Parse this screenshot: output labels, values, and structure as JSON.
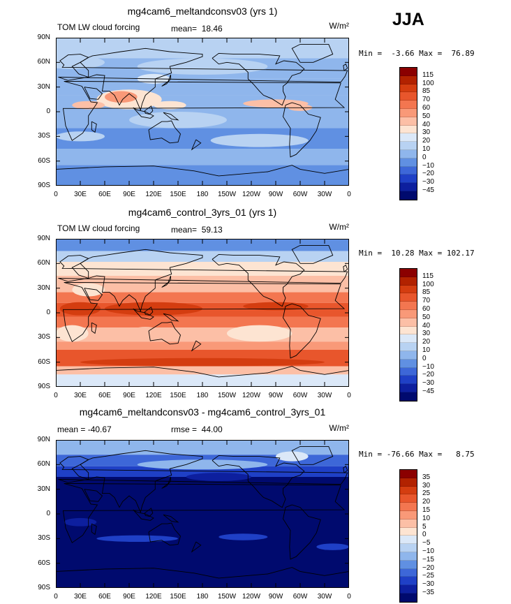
{
  "season": "JJA",
  "x_ticks": [
    "0",
    "30E",
    "60E",
    "90E",
    "120E",
    "150E",
    "180",
    "150W",
    "120W",
    "90W",
    "60W",
    "30W",
    "0"
  ],
  "y_ticks": [
    "90N",
    "60N",
    "30N",
    "0",
    "30S",
    "60S",
    "90S"
  ],
  "panels": [
    {
      "title": "mg4cam6_meltandconsv03 (yrs 1)",
      "left_label": "TOM LW cloud forcing",
      "stat1": "mean=  18.46",
      "stat2": "",
      "units": "W/m²",
      "minmax": "Min =  -3.66 Max =  76.89",
      "levels": [
        "115",
        "100",
        "85",
        "70",
        "60",
        "50",
        "40",
        "30",
        "20",
        "10",
        "0",
        "−10",
        "−20",
        "−30",
        "−45"
      ],
      "colors": [
        "#8b0000",
        "#b22200",
        "#d43d10",
        "#e8562c",
        "#f37650",
        "#f99978",
        "#fcbfa6",
        "#fde4d2",
        "#dbe8f8",
        "#b8d2f2",
        "#8fb6ec",
        "#6090e2",
        "#3d67d8",
        "#1f40c6",
        "#0d1f9e",
        "#000a6e"
      ],
      "theme": "warm-low"
    },
    {
      "title": "mg4cam6_control_3yrs_01 (yrs 1)",
      "left_label": "TOM LW cloud forcing",
      "stat1": "mean=  59.13",
      "stat2": "",
      "units": "W/m²",
      "minmax": "Min =  10.28 Max = 102.17",
      "levels": [
        "115",
        "100",
        "85",
        "70",
        "60",
        "50",
        "40",
        "30",
        "20",
        "10",
        "0",
        "−10",
        "−20",
        "−30",
        "−45"
      ],
      "colors": [
        "#8b0000",
        "#b22200",
        "#d43d10",
        "#e8562c",
        "#f37650",
        "#f99978",
        "#fcbfa6",
        "#fde4d2",
        "#dbe8f8",
        "#b8d2f2",
        "#8fb6ec",
        "#6090e2",
        "#3d67d8",
        "#1f40c6",
        "#0d1f9e",
        "#000a6e"
      ],
      "theme": "warm-high"
    },
    {
      "title": "mg4cam6_meltandconsv03 - mg4cam6_control_3yrs_01",
      "left_label": "mean = -40.67",
      "stat1": "rmse =  44.00",
      "stat2": "",
      "units": "W/m²",
      "minmax": "Min = -76.66 Max =   8.75",
      "levels": [
        "35",
        "30",
        "25",
        "20",
        "15",
        "10",
        "5",
        "0",
        "−5",
        "−10",
        "−15",
        "−20",
        "−25",
        "−30",
        "−35"
      ],
      "colors": [
        "#8b0000",
        "#b22200",
        "#d43d10",
        "#e8562c",
        "#f37650",
        "#f99978",
        "#fcbfa6",
        "#fde4d2",
        "#dbe8f8",
        "#b8d2f2",
        "#8fb6ec",
        "#6090e2",
        "#3d67d8",
        "#1f40c6",
        "#0d1f9e",
        "#000a6e"
      ],
      "theme": "diff"
    }
  ]
}
